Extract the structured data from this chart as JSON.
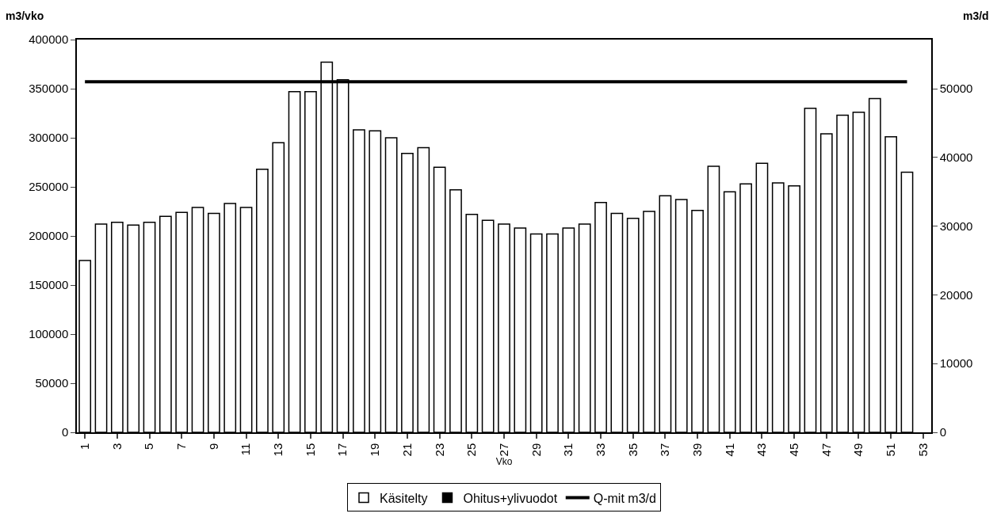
{
  "chart_data": {
    "type": "bar",
    "xlabel": "Vko",
    "ylabel": "m3/vko",
    "y2label": "m3/d",
    "categories": [
      "1",
      null,
      "3",
      null,
      "5",
      null,
      "7",
      null,
      "9",
      null,
      "11",
      null,
      "13",
      null,
      "15",
      null,
      "17",
      null,
      "19",
      null,
      "21",
      null,
      "23",
      null,
      "25",
      null,
      "27",
      null,
      "29",
      null,
      "31",
      null,
      "33",
      null,
      "35",
      null,
      "37",
      null,
      "39",
      null,
      "41",
      null,
      "43",
      null,
      "45",
      null,
      "47",
      null,
      "49",
      null,
      "51",
      null,
      "53"
    ],
    "series": [
      {
        "name": "Käsitelty",
        "color": "#ffffff",
        "values": [
          175000,
          212000,
          214000,
          211000,
          214000,
          220000,
          224000,
          229000,
          223000,
          233000,
          229000,
          268000,
          295000,
          347000,
          347000,
          377000,
          359000,
          308000,
          307000,
          300000,
          284000,
          290000,
          270000,
          247000,
          222000,
          216000,
          212000,
          208000,
          202000,
          202000,
          208000,
          212000,
          234000,
          223000,
          218000,
          225000,
          241000,
          237000,
          226000,
          271000,
          245000,
          253000,
          274000,
          254000,
          251000,
          330000,
          304000,
          323000,
          326000,
          340000,
          301000,
          265000,
          null
        ]
      },
      {
        "name": "Ohitus+ylivuodot",
        "color": "#000000",
        "values": [
          null,
          null,
          null,
          null,
          null,
          null,
          null,
          null,
          null,
          null,
          null,
          null,
          null,
          null,
          null,
          null,
          null,
          null,
          null,
          null,
          null,
          null,
          null,
          null,
          null,
          null,
          null,
          null,
          null,
          null,
          null,
          null,
          null,
          null,
          null,
          null,
          null,
          null,
          null,
          null,
          null,
          null,
          null,
          null,
          null,
          null,
          null,
          null,
          null,
          null,
          null,
          null,
          null
        ]
      },
      {
        "name": "Q-mit m3/d",
        "type": "line",
        "axis": "y2",
        "color": "#000000",
        "values": [
          51000,
          51000,
          51000,
          51000,
          51000,
          51000,
          51000,
          51000,
          51000,
          51000,
          51000,
          51000,
          51000,
          51000,
          51000,
          51000,
          51000,
          51000,
          51000,
          51000,
          51000,
          51000,
          51000,
          51000,
          51000,
          51000,
          51000,
          51000,
          51000,
          51000,
          51000,
          51000,
          51000,
          51000,
          51000,
          51000,
          51000,
          51000,
          51000,
          51000,
          51000,
          51000,
          51000,
          51000,
          51000,
          51000,
          51000,
          51000,
          51000,
          51000,
          51000,
          51000,
          null
        ]
      }
    ],
    "ylim": [
      0,
      400000
    ],
    "yticks": [
      0,
      50000,
      100000,
      150000,
      200000,
      250000,
      300000,
      350000,
      400000
    ],
    "y2lim": [
      0,
      57142.857
    ],
    "y2ticks": [
      0,
      10000,
      20000,
      30000,
      40000,
      50000
    ],
    "legend": "bottom",
    "marker": "none",
    "line_style": "solid"
  }
}
